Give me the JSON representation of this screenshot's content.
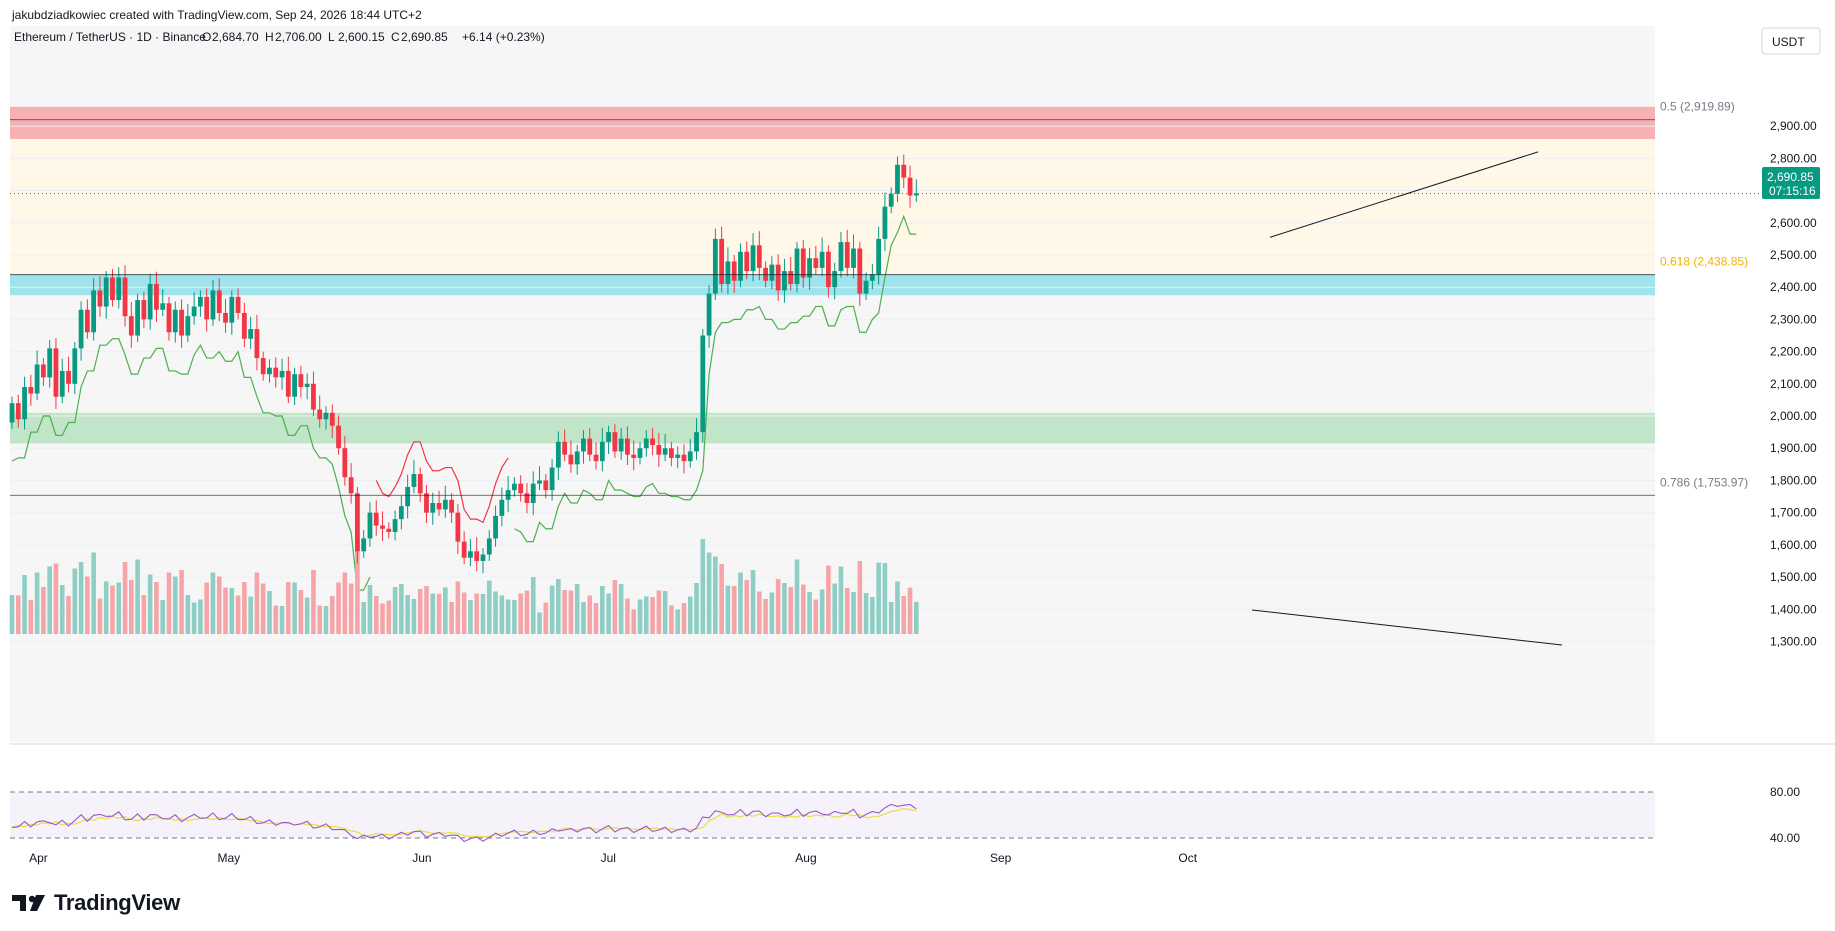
{
  "header": {
    "attribution": "jakubdziadkowiec created with TradingView.com, Sep 24, 2026 18:44 UTC+2",
    "symbol": "Ethereum / TetherUS · 1D · Binance",
    "ohlc": [
      {
        "label": "O",
        "value": "2,684.70"
      },
      {
        "label": "H",
        "value": "2,706.00"
      },
      {
        "label": "L",
        "value": "2,600.15"
      },
      {
        "label": "C",
        "value": "2,690.85"
      }
    ],
    "change": "+6.14 (+0.23%)",
    "currency": "USDT"
  },
  "price_label": {
    "value": "2,690.85",
    "countdown": "07:15:16"
  },
  "brand": {
    "name": "TradingView"
  },
  "colors": {
    "up": "#089981",
    "down": "#f23645",
    "up_vol": "#8ecec4",
    "down_vol": "#f5a5a8",
    "resistance_zone": "#f6a4a8",
    "support_zone_cyan": "#8fdfea",
    "support_zone_green": "#b7e2bf",
    "fib_zone": "#fff8e8",
    "rsi_line": "#9c57c4",
    "rsi_ma": "#e6e044"
  },
  "chart_data": {
    "type": "candlestick",
    "y_axis": {
      "min": 1200,
      "max": 3000,
      "ticks": [
        1300,
        1400,
        1500,
        1600,
        1700,
        1800,
        1900,
        2000,
        2100,
        2200,
        2300,
        2400,
        2500,
        2600,
        2700,
        2800,
        2900
      ]
    },
    "x_axis_labels": [
      {
        "label": "Apr",
        "date": "2026-04-01"
      },
      {
        "label": "May",
        "date": "2026-05-01"
      },
      {
        "label": "Jun",
        "date": "2026-06-01"
      },
      {
        "label": "Jul",
        "date": "2026-07-01"
      },
      {
        "label": "Aug",
        "date": "2026-08-01"
      },
      {
        "label": "Sep",
        "date": "2026-09-01"
      },
      {
        "label": "Oct",
        "date": "2026-10-01"
      }
    ],
    "fib_levels": [
      {
        "label": "0.5 (2,919.89)",
        "price": 2919.89,
        "color": "#787b86"
      },
      {
        "label": "0.618 (2,438.85)",
        "price": 2438.85,
        "color": "#f0b400"
      },
      {
        "label": "0.786 (1,753.97)",
        "price": 1753.97,
        "color": "#787b86"
      }
    ],
    "zones": [
      {
        "name": "resistance",
        "from": 2860,
        "to": 2960
      },
      {
        "name": "support-cyan",
        "from": 2375,
        "to": 2440
      },
      {
        "name": "support-green",
        "from": 1915,
        "to": 2010
      }
    ],
    "candles_daily": [
      [
        1980,
        2040
      ],
      [
        2040,
        1990
      ],
      [
        1990,
        2090
      ],
      [
        2090,
        2070
      ],
      [
        2070,
        2160
      ],
      [
        2160,
        2120
      ],
      [
        2120,
        2210
      ],
      [
        2210,
        2060
      ],
      [
        2060,
        2140
      ],
      [
        2140,
        2100
      ],
      [
        2100,
        2210
      ],
      [
        2210,
        2330
      ],
      [
        2330,
        2260
      ],
      [
        2260,
        2390
      ],
      [
        2390,
        2340
      ],
      [
        2340,
        2430
      ],
      [
        2430,
        2360
      ],
      [
        2360,
        2430
      ],
      [
        2430,
        2310
      ],
      [
        2310,
        2250
      ],
      [
        2250,
        2360
      ],
      [
        2360,
        2300
      ],
      [
        2300,
        2410
      ],
      [
        2410,
        2330
      ],
      [
        2330,
        2350
      ],
      [
        2350,
        2260
      ],
      [
        2260,
        2330
      ],
      [
        2330,
        2250
      ],
      [
        2250,
        2310
      ],
      [
        2310,
        2340
      ],
      [
        2340,
        2370
      ],
      [
        2370,
        2300
      ],
      [
        2300,
        2390
      ],
      [
        2390,
        2320
      ],
      [
        2320,
        2290
      ],
      [
        2290,
        2370
      ],
      [
        2370,
        2320
      ],
      [
        2320,
        2240
      ],
      [
        2240,
        2270
      ],
      [
        2270,
        2180
      ],
      [
        2180,
        2130
      ],
      [
        2130,
        2150
      ],
      [
        2150,
        2120
      ],
      [
        2120,
        2140
      ],
      [
        2140,
        2060
      ],
      [
        2060,
        2130
      ],
      [
        2130,
        2090
      ],
      [
        2090,
        2100
      ],
      [
        2100,
        2020
      ],
      [
        2020,
        1990
      ],
      [
        1990,
        2010
      ],
      [
        2010,
        1970
      ],
      [
        1970,
        1900
      ],
      [
        1900,
        1810
      ],
      [
        1810,
        1760
      ],
      [
        1760,
        1580
      ],
      [
        1580,
        1620
      ],
      [
        1620,
        1700
      ],
      [
        1700,
        1660
      ],
      [
        1660,
        1650
      ],
      [
        1650,
        1640
      ],
      [
        1640,
        1680
      ],
      [
        1680,
        1720
      ],
      [
        1720,
        1780
      ],
      [
        1780,
        1820
      ],
      [
        1820,
        1760
      ],
      [
        1760,
        1700
      ],
      [
        1700,
        1730
      ],
      [
        1730,
        1710
      ],
      [
        1710,
        1740
      ],
      [
        1740,
        1700
      ],
      [
        1700,
        1610
      ],
      [
        1610,
        1560
      ],
      [
        1560,
        1580
      ],
      [
        1580,
        1550
      ],
      [
        1550,
        1570
      ],
      [
        1570,
        1620
      ],
      [
        1620,
        1690
      ],
      [
        1690,
        1740
      ],
      [
        1740,
        1770
      ],
      [
        1770,
        1790
      ],
      [
        1790,
        1760
      ],
      [
        1760,
        1730
      ],
      [
        1730,
        1790
      ],
      [
        1790,
        1800
      ],
      [
        1800,
        1770
      ],
      [
        1770,
        1840
      ],
      [
        1840,
        1920
      ],
      [
        1920,
        1880
      ],
      [
        1880,
        1850
      ],
      [
        1850,
        1890
      ],
      [
        1890,
        1930
      ],
      [
        1930,
        1880
      ],
      [
        1880,
        1860
      ],
      [
        1860,
        1920
      ],
      [
        1920,
        1950
      ],
      [
        1950,
        1890
      ],
      [
        1890,
        1930
      ],
      [
        1930,
        1880
      ],
      [
        1880,
        1870
      ],
      [
        1870,
        1900
      ],
      [
        1900,
        1930
      ],
      [
        1930,
        1910
      ],
      [
        1910,
        1880
      ],
      [
        1880,
        1900
      ],
      [
        1900,
        1870
      ],
      [
        1870,
        1880
      ],
      [
        1880,
        1860
      ],
      [
        1860,
        1890
      ],
      [
        1890,
        1950
      ],
      [
        1950,
        2250
      ],
      [
        2250,
        2380
      ],
      [
        2380,
        2550
      ],
      [
        2550,
        2410
      ],
      [
        2410,
        2480
      ],
      [
        2480,
        2420
      ],
      [
        2420,
        2510
      ],
      [
        2510,
        2450
      ],
      [
        2450,
        2530
      ],
      [
        2530,
        2460
      ],
      [
        2460,
        2420
      ],
      [
        2420,
        2470
      ],
      [
        2470,
        2390
      ],
      [
        2390,
        2450
      ],
      [
        2450,
        2410
      ],
      [
        2410,
        2520
      ],
      [
        2520,
        2430
      ],
      [
        2430,
        2490
      ],
      [
        2490,
        2460
      ],
      [
        2460,
        2510
      ],
      [
        2510,
        2400
      ],
      [
        2400,
        2450
      ],
      [
        2450,
        2540
      ],
      [
        2540,
        2460
      ],
      [
        2460,
        2520
      ],
      [
        2520,
        2380
      ],
      [
        2380,
        2420
      ],
      [
        2420,
        2440
      ],
      [
        2440,
        2550
      ],
      [
        2550,
        2650
      ],
      [
        2650,
        2690
      ],
      [
        2690,
        2780
      ],
      [
        2780,
        2740
      ],
      [
        2740,
        2684.7
      ],
      [
        2684.7,
        2690.85
      ]
    ],
    "volume_note": "volume histogram",
    "rsi": {
      "levels": [
        80.0,
        40.0
      ],
      "ticks": [
        "80.00",
        "40.00"
      ]
    }
  }
}
